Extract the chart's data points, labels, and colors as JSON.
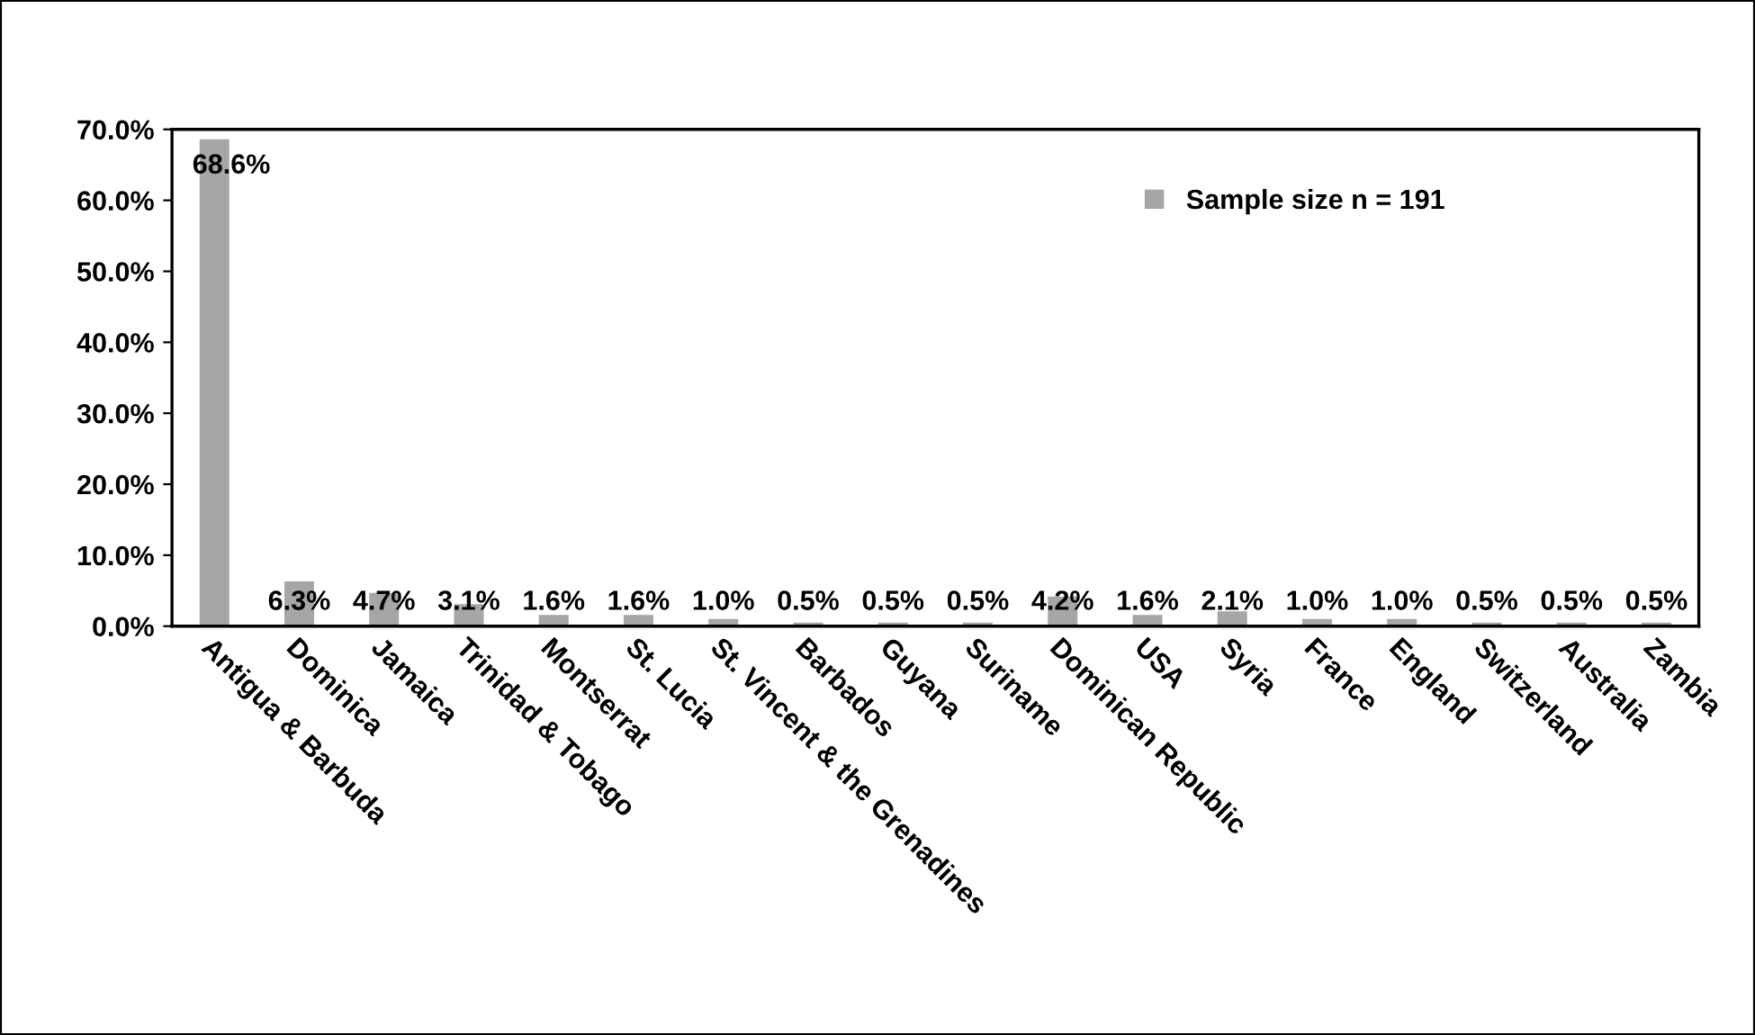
{
  "chart_data": {
    "type": "bar",
    "categories": [
      "Antigua & Barbuda",
      "Dominica",
      "Jamaica",
      "Trinidad & Tobago",
      "Montserrat",
      "St. Lucia",
      "St. Vincent & the Grenadines",
      "Barbados",
      "Guyana",
      "Suriname",
      "Dominican Republic",
      "USA",
      "Syria",
      "France",
      "England",
      "Switzerland",
      "Australia",
      "Zambia"
    ],
    "series": [
      {
        "name": "Sample size n = 191",
        "color": "#a6a6a6",
        "values": [
          68.6,
          6.3,
          4.7,
          3.1,
          1.6,
          1.6,
          1.0,
          0.5,
          0.5,
          0.5,
          4.2,
          1.6,
          2.1,
          1.0,
          1.0,
          0.5,
          0.5,
          0.5
        ],
        "value_labels": [
          "68.6%",
          "6.3%",
          "4.7%",
          "3.1%",
          "1.6%",
          "1.6%",
          "1.0%",
          "0.5%",
          "0.5%",
          "0.5%",
          "4.2%",
          "1.6%",
          "2.1%",
          "1.0%",
          "1.0%",
          "0.5%",
          "0.5%",
          "0.5%"
        ]
      }
    ],
    "ylim": [
      0,
      70
    ],
    "yticks": [
      {
        "value": 0,
        "label": "0.0%"
      },
      {
        "value": 10,
        "label": "10.0%"
      },
      {
        "value": 20,
        "label": "20.0%"
      },
      {
        "value": 30,
        "label": "30.0%"
      },
      {
        "value": 40,
        "label": "40.0%"
      },
      {
        "value": 50,
        "label": "50.0%"
      },
      {
        "value": 60,
        "label": "60.0%"
      },
      {
        "value": 70,
        "label": "70.0%"
      }
    ],
    "grid": false,
    "legend": "top right"
  }
}
